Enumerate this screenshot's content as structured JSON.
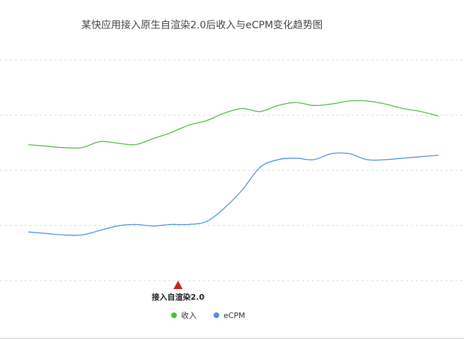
{
  "chart_data": {
    "type": "line",
    "title": "某快应用接入原生自渲染2.0后收入与eCPM变化趋势图",
    "xlabel": "",
    "ylabel": "",
    "x": [
      0,
      1,
      2,
      3,
      4,
      5,
      6,
      7,
      8,
      9,
      10,
      11,
      12,
      13,
      14,
      15,
      16,
      17,
      18,
      19,
      20,
      21,
      22,
      23
    ],
    "ylim": [
      0,
      100
    ],
    "grid": true,
    "legend_position": "bottom",
    "series": [
      {
        "name": "收入",
        "color": "#4cbb3f",
        "values": [
          72,
          71,
          70,
          70,
          74,
          73,
          72,
          76,
          80,
          85,
          88,
          93,
          96,
          94,
          98,
          100,
          98,
          99,
          101,
          101,
          99,
          96,
          94,
          91
        ]
      },
      {
        "name": "eCPM",
        "color": "#4a90e2",
        "values": [
          14,
          13,
          12,
          12,
          15,
          18,
          19,
          18,
          19,
          19,
          21,
          30,
          42,
          57,
          62,
          63,
          62,
          66,
          66,
          62,
          62,
          63,
          64,
          65
        ]
      }
    ],
    "annotation": {
      "label": "接入自渲染2.0",
      "x": 8,
      "color": "#c62828"
    }
  }
}
